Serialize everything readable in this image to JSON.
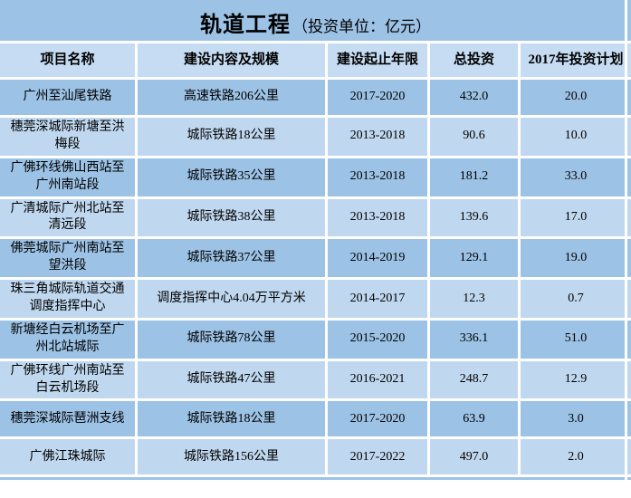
{
  "title": {
    "main": "轨道工程",
    "sub": "（投资单位：亿元）"
  },
  "table": {
    "headers": [
      "项目名称",
      "建设内容及规模",
      "建设起止年限",
      "总投资",
      "2017年投资计划"
    ],
    "rows": [
      {
        "name": "广州至汕尾铁路",
        "content": "高速铁路206公里",
        "period": "2017-2020",
        "total": "432.0",
        "plan2017": "20.0"
      },
      {
        "name": "穗莞深城际新塘至洪梅段",
        "content": "城际铁路18公里",
        "period": "2013-2018",
        "total": "90.6",
        "plan2017": "10.0"
      },
      {
        "name": "广佛环线佛山西站至广州南站段",
        "content": "城际铁路35公里",
        "period": "2013-2018",
        "total": "181.2",
        "plan2017": "33.0"
      },
      {
        "name": "广清城际广州北站至清远段",
        "content": "城际铁路38公里",
        "period": "2013-2018",
        "total": "139.6",
        "plan2017": "17.0"
      },
      {
        "name": "佛莞城际广州南站至望洪段",
        "content": "城际铁路37公里",
        "period": "2014-2019",
        "total": "129.1",
        "plan2017": "19.0"
      },
      {
        "name": "珠三角城际轨道交通调度指挥中心",
        "content": "调度指挥中心4.04万平方米",
        "period": "2014-2017",
        "total": "12.3",
        "plan2017": "0.7"
      },
      {
        "name": "新塘经白云机场至广州北站城际",
        "content": "城际铁路78公里",
        "period": "2015-2020",
        "total": "336.1",
        "plan2017": "51.0"
      },
      {
        "name": "广佛环线广州南站至白云机场段",
        "content": "城际铁路47公里",
        "period": "2016-2021",
        "total": "248.7",
        "plan2017": "12.9"
      },
      {
        "name": "穗莞深城际琶洲支线",
        "content": "城际铁路18公里",
        "period": "2017-2020",
        "total": "63.9",
        "plan2017": "3.0"
      },
      {
        "name": "广佛江珠城际",
        "content": "城际铁路156公里",
        "period": "2017-2022",
        "total": "497.0",
        "plan2017": "2.0"
      }
    ]
  },
  "colors": {
    "title_band": "#9CC2E5",
    "header_bg": "#C5DCF2",
    "row_dark": "#9CC2E5",
    "row_light": "#C0D8EF",
    "gridline": "#FFFFFF",
    "text": "#000000"
  },
  "chart_data": {
    "type": "table",
    "title": "轨道工程（投资单位：亿元）",
    "columns": [
      "项目名称",
      "建设内容及规模",
      "建设起止年限",
      "总投资",
      "2017年投资计划"
    ],
    "rows": [
      [
        "广州至汕尾铁路",
        "高速铁路206公里",
        "2017-2020",
        432.0,
        20.0
      ],
      [
        "穗莞深城际新塘至洪梅段",
        "城际铁路18公里",
        "2013-2018",
        90.6,
        10.0
      ],
      [
        "广佛环线佛山西站至广州南站段",
        "城际铁路35公里",
        "2013-2018",
        181.2,
        33.0
      ],
      [
        "广清城际广州北站至清远段",
        "城际铁路38公里",
        "2013-2018",
        139.6,
        17.0
      ],
      [
        "佛莞城际广州南站至望洪段",
        "城际铁路37公里",
        "2014-2019",
        129.1,
        19.0
      ],
      [
        "珠三角城际轨道交通调度指挥中心",
        "调度指挥中心4.04万平方米",
        "2014-2017",
        12.3,
        0.7
      ],
      [
        "新塘经白云机场至广州北站城际",
        "城际铁路78公里",
        "2015-2020",
        336.1,
        51.0
      ],
      [
        "广佛环线广州南站至白云机场段",
        "城际铁路47公里",
        "2016-2021",
        248.7,
        12.9
      ],
      [
        "穗莞深城际琶洲支线",
        "城际铁路18公里",
        "2017-2020",
        63.9,
        3.0
      ],
      [
        "广佛江珠城际",
        "城际铁路156公里",
        "2017-2022",
        497.0,
        2.0
      ]
    ],
    "notes": "投资单位：亿元；行底色交替深浅蓝"
  }
}
